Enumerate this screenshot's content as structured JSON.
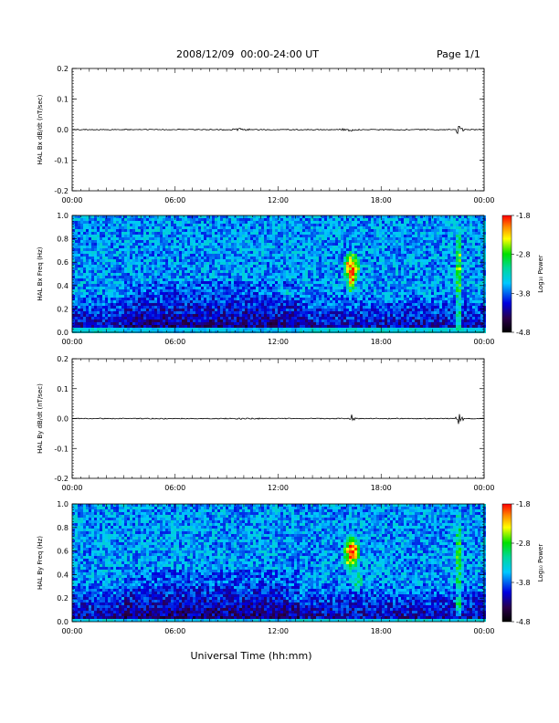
{
  "header": {
    "title": "2008/12/09  00:00-24:00 UT",
    "page": "Page 1/1"
  },
  "chart_data": [
    {
      "type": "line",
      "ylabel": "HAL Bx dB/dt (nT/sec)",
      "ylim": [
        -0.2,
        0.2
      ],
      "yticks": [
        "0.2",
        "0.1",
        "0.0",
        "-0.1",
        "-0.2"
      ],
      "xlim": [
        "00:00",
        "24:00"
      ],
      "xticks": [
        "00:00",
        "06:00",
        "12:00",
        "18:00",
        "00:00"
      ],
      "series": [
        {
          "x": [
            "00:00",
            "06:00",
            "12:00",
            "16:30",
            "21:30",
            "22:00",
            "24:00"
          ],
          "y": [
            0.0,
            0.0,
            0.0,
            0.0,
            0.01,
            0.0,
            0.0
          ]
        }
      ]
    },
    {
      "type": "heatmap",
      "ylabel": "HAL Bx Freq (Hz)",
      "ylim": [
        0.0,
        1.0
      ],
      "yticks": [
        "1.0",
        "0.8",
        "0.6",
        "0.4",
        "0.2",
        "0.0"
      ],
      "xlim": [
        "00:00",
        "24:00"
      ],
      "xticks": [
        "00:00",
        "06:00",
        "12:00",
        "18:00",
        "00:00"
      ],
      "colorbar": {
        "label": "Log₁₀ Power",
        "ticks": [
          "-1.8",
          "-2.8",
          "-3.8",
          "-4.8"
        ],
        "range": [
          -4.8,
          -1.8
        ]
      }
    },
    {
      "type": "line",
      "ylabel": "HAL By dB/dt (nT/sec)",
      "ylim": [
        -0.2,
        0.2
      ],
      "yticks": [
        "0.2",
        "0.1",
        "0.0",
        "-0.1",
        "-0.2"
      ],
      "xlim": [
        "00:00",
        "24:00"
      ],
      "xticks": [
        "00:00",
        "06:00",
        "12:00",
        "18:00",
        "00:00"
      ],
      "series": [
        {
          "x": [
            "00:00",
            "06:00",
            "12:00",
            "16:30",
            "21:30",
            "24:00"
          ],
          "y": [
            0.0,
            0.0,
            0.0,
            0.0,
            0.0,
            0.0
          ]
        }
      ]
    },
    {
      "type": "heatmap",
      "ylabel": "HAL By Freq (Hz)",
      "ylim": [
        0.0,
        1.0
      ],
      "yticks": [
        "1.0",
        "0.8",
        "0.6",
        "0.4",
        "0.2",
        "0.0"
      ],
      "xlim": [
        "00:00",
        "24:00"
      ],
      "xticks": [
        "00:00",
        "06:00",
        "12:00",
        "18:00",
        "00:00"
      ],
      "xlabel": "Universal Time (hh:mm)",
      "colorbar": {
        "label": "Log₁₀ Power",
        "ticks": [
          "-1.8",
          "-2.8",
          "-3.8",
          "-4.8"
        ],
        "range": [
          -4.8,
          -1.8
        ]
      }
    }
  ]
}
